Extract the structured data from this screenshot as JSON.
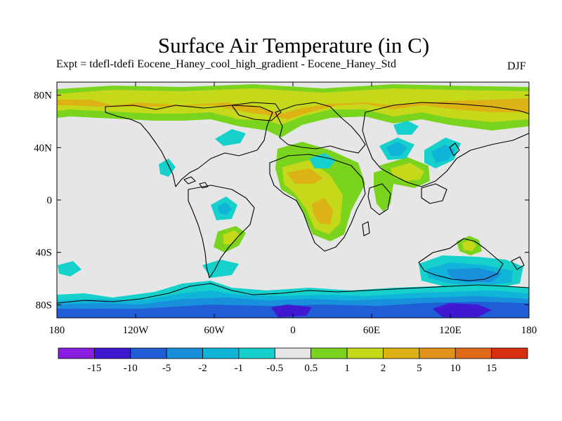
{
  "title": "Surface Air Temperature (in C)",
  "subtitle": "Expt = tdefl-tdefi  Eocene_Haney_cool_high_gradient - Eocene_Haney_Std",
  "season": "DJF",
  "axes": {
    "lat_labels": [
      "80N",
      "40N",
      "0",
      "40S",
      "80S"
    ],
    "lat_values": [
      80,
      40,
      0,
      -40,
      -80
    ],
    "lon_labels": [
      "180",
      "120W",
      "60W",
      "0",
      "60E",
      "120E",
      "180"
    ],
    "lon_values": [
      -180,
      -120,
      -60,
      0,
      60,
      120,
      180
    ],
    "lat_range": [
      -90,
      90
    ],
    "lon_range": [
      -180,
      180
    ]
  },
  "colorbar": {
    "labels": [
      "-15",
      "-10",
      "-5",
      "-2",
      "-1",
      "-0.5",
      "0.5",
      "1",
      "2",
      "5",
      "10",
      "15"
    ],
    "colors": [
      "#8a1ee0",
      "#3f18d0",
      "#1f5ed6",
      "#1890dc",
      "#0fb4d8",
      "#16d0cc",
      "#e6e6e6",
      "#7ad41e",
      "#c6d81a",
      "#dcb214",
      "#e0921a",
      "#e06a1a",
      "#d92e10"
    ]
  },
  "colors": {
    "land_outline": "#000000",
    "background": "#e6e6e6"
  }
}
